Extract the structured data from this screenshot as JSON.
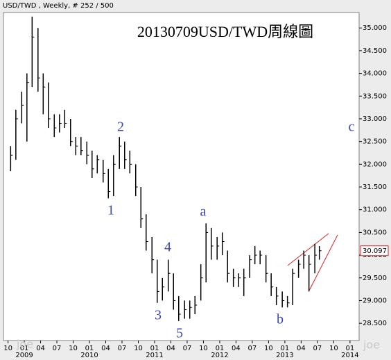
{
  "chart_data": {
    "type": "ohlc",
    "header": "USD/TWD , Weekly, # 252 / 500",
    "title": "20130709USD/TWD周線圖",
    "color": "#000000",
    "x": [
      2008.79,
      2008.87,
      2008.96,
      2009.04,
      2009.12,
      2009.21,
      2009.29,
      2009.37,
      2009.46,
      2009.54,
      2009.62,
      2009.71,
      2009.79,
      2009.87,
      2009.96,
      2010.04,
      2010.12,
      2010.21,
      2010.29,
      2010.37,
      2010.46,
      2010.54,
      2010.62,
      2010.71,
      2010.79,
      2010.87,
      2010.96,
      2011.04,
      2011.12,
      2011.21,
      2011.29,
      2011.37,
      2011.46,
      2011.54,
      2011.62,
      2011.71,
      2011.79,
      2011.87,
      2011.96,
      2012.04,
      2012.12,
      2012.21,
      2012.29,
      2012.37,
      2012.46,
      2012.54,
      2012.62,
      2012.71,
      2012.79,
      2012.87,
      2012.96,
      2013.04,
      2013.12,
      2013.21,
      2013.29,
      2013.37,
      2013.46,
      2013.53
    ],
    "high": [
      32.4,
      33.2,
      33.6,
      34.0,
      35.25,
      35.0,
      34.0,
      33.8,
      33.1,
      33.1,
      33.2,
      33.0,
      32.6,
      32.6,
      32.5,
      32.3,
      32.2,
      32.1,
      31.9,
      32.2,
      32.6,
      32.5,
      32.3,
      32.0,
      31.5,
      30.9,
      30.4,
      29.9,
      29.5,
      29.9,
      29.6,
      29.1,
      29.0,
      29.0,
      29.1,
      29.8,
      30.7,
      30.6,
      30.4,
      30.5,
      30.1,
      29.7,
      29.6,
      29.7,
      30.0,
      30.2,
      30.1,
      30.0,
      29.6,
      29.3,
      29.2,
      29.1,
      29.7,
      29.9,
      30.1,
      30.0,
      30.25,
      30.2
    ],
    "low": [
      31.85,
      32.1,
      32.9,
      32.5,
      33.7,
      33.6,
      33.1,
      32.8,
      32.6,
      32.7,
      32.8,
      32.4,
      32.2,
      32.2,
      32.0,
      31.7,
      31.8,
      31.6,
      31.25,
      31.3,
      31.9,
      31.9,
      31.8,
      31.3,
      30.6,
      30.1,
      29.6,
      28.95,
      29.0,
      29.2,
      28.8,
      28.55,
      28.6,
      28.6,
      28.7,
      29.0,
      29.4,
      29.9,
      29.9,
      30.0,
      29.4,
      29.3,
      29.3,
      29.1,
      29.5,
      29.8,
      29.8,
      29.4,
      29.1,
      28.9,
      28.85,
      28.85,
      28.9,
      29.5,
      29.7,
      29.2,
      29.6,
      29.9
    ],
    "close": [
      32.2,
      33.0,
      33.3,
      33.8,
      34.8,
      33.9,
      33.7,
      33.0,
      32.8,
      32.9,
      32.9,
      32.5,
      32.4,
      32.3,
      32.2,
      31.9,
      32.1,
      31.8,
      31.4,
      32.0,
      32.4,
      32.1,
      32.0,
      31.5,
      30.8,
      30.3,
      29.9,
      29.2,
      29.3,
      29.6,
      29.0,
      28.7,
      28.8,
      28.85,
      28.9,
      29.5,
      30.5,
      30.2,
      30.2,
      30.3,
      29.6,
      29.5,
      29.5,
      29.5,
      29.9,
      30.0,
      30.0,
      29.6,
      29.3,
      29.1,
      29.0,
      28.95,
      29.6,
      29.8,
      30.0,
      29.8,
      30.0,
      30.097
    ],
    "last_price": 30.097,
    "xlim": [
      2008.68,
      2014.14
    ],
    "ylim": [
      28.12,
      35.34
    ],
    "xticks": [
      {
        "value": 2008.75,
        "label": "10"
      },
      {
        "value": 2009.0,
        "label": "01"
      },
      {
        "value": 2009.25,
        "label": "04"
      },
      {
        "value": 2009.5,
        "label": "07"
      },
      {
        "value": 2009.75,
        "label": "10"
      },
      {
        "value": 2010.0,
        "label": "01"
      },
      {
        "value": 2010.25,
        "label": "04"
      },
      {
        "value": 2010.5,
        "label": "07"
      },
      {
        "value": 2010.75,
        "label": "10"
      },
      {
        "value": 2011.0,
        "label": "01"
      },
      {
        "value": 2011.25,
        "label": "04"
      },
      {
        "value": 2011.5,
        "label": "07"
      },
      {
        "value": 2011.75,
        "label": "10"
      },
      {
        "value": 2012.0,
        "label": "01"
      },
      {
        "value": 2012.25,
        "label": "04"
      },
      {
        "value": 2012.5,
        "label": "07"
      },
      {
        "value": 2012.75,
        "label": "10"
      },
      {
        "value": 2013.0,
        "label": "01"
      },
      {
        "value": 2013.25,
        "label": "04"
      },
      {
        "value": 2013.5,
        "label": "07"
      },
      {
        "value": 2013.75,
        "label": "10"
      },
      {
        "value": 2014.0,
        "label": "01"
      }
    ],
    "year_labels": [
      2009,
      2010,
      2011,
      2012,
      2013,
      2014
    ],
    "yticks": [
      {
        "value": 28.5,
        "label": "28.500"
      },
      {
        "value": 29.0,
        "label": "29.000"
      },
      {
        "value": 29.5,
        "label": "29.500"
      },
      {
        "value": 30.0,
        "label": "30.000"
      },
      {
        "value": 30.5,
        "label": "30.500"
      },
      {
        "value": 31.0,
        "label": "31.000"
      },
      {
        "value": 31.5,
        "label": "31.500"
      },
      {
        "value": 32.0,
        "label": "32.000"
      },
      {
        "value": 32.5,
        "label": "32.500"
      },
      {
        "value": 33.0,
        "label": "33.000"
      },
      {
        "value": 33.5,
        "label": "33.500"
      },
      {
        "value": 34.0,
        "label": "34.000"
      },
      {
        "value": 34.5,
        "label": "34.500"
      },
      {
        "value": 35.0,
        "label": "35.000"
      }
    ],
    "annotations": [
      "1",
      "2",
      "3",
      "4",
      "5",
      "a",
      "b",
      "c"
    ],
    "watermarks": [
      "joe",
      "joe"
    ]
  }
}
